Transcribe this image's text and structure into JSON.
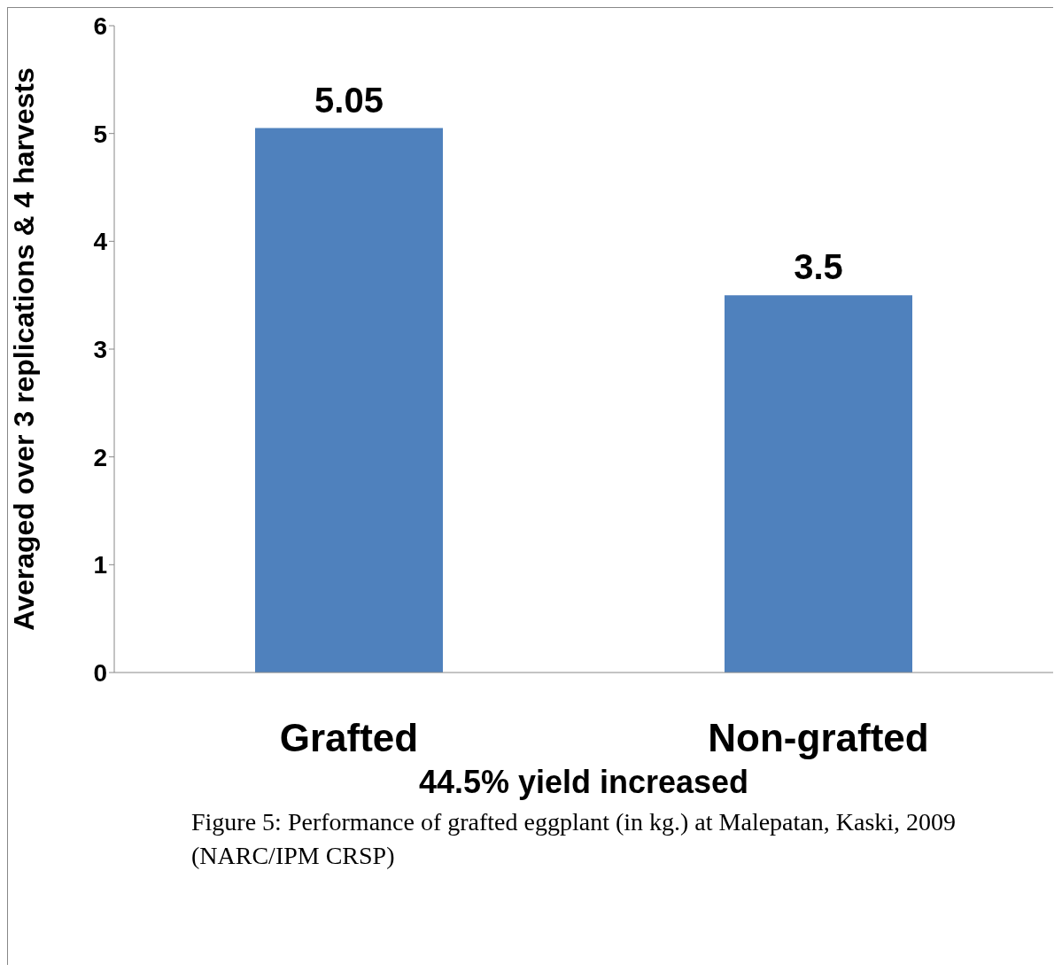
{
  "chart_data": {
    "type": "bar",
    "categories": [
      "Grafted",
      "Non-grafted"
    ],
    "values": [
      5.05,
      3.5
    ],
    "color": "#4f81bd",
    "ylim": [
      0,
      6
    ],
    "yticks": [
      0,
      1,
      2,
      3,
      4,
      5,
      6
    ],
    "ylabel": "Averaged over 3 replications & 4 harvests",
    "xlabel": "44.5% yield increased",
    "data_labels": true,
    "grid": false,
    "legend": false,
    "annotations": [
      "Figure 5: Performance of grafted eggplant (in kg.) at Malepatan, Kaski, 2009 (NARC/IPM CRSP)"
    ]
  }
}
